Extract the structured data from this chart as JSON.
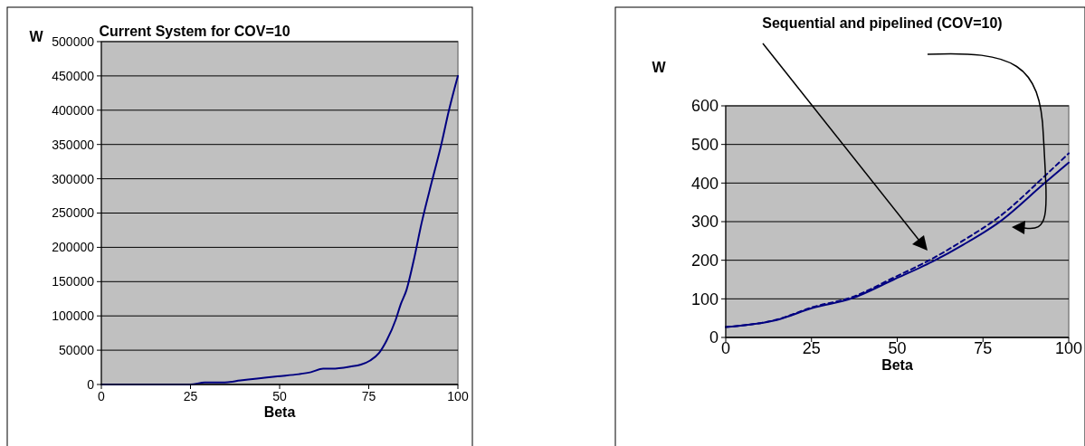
{
  "chart_data": [
    {
      "type": "line",
      "title": "Current System for COV=10",
      "xlabel": "Beta",
      "ylabel": "W",
      "xlim": [
        0,
        100
      ],
      "xticks": [
        0,
        25,
        50,
        75,
        100
      ],
      "ylim": [
        0,
        500000
      ],
      "yticks": [
        0,
        50000,
        100000,
        150000,
        200000,
        250000,
        300000,
        350000,
        400000,
        450000,
        500000
      ],
      "grid": "y",
      "x": [
        0,
        25,
        29,
        34.6,
        39,
        49.4,
        55.4,
        58.8,
        62.2,
        64.7,
        69.8,
        72.8,
        75.4,
        77.9,
        80,
        82.6,
        83.9,
        85.6,
        87.7,
        89.8,
        92.8,
        95.3,
        97.5,
        100
      ],
      "series": [
        {
          "color": "#000080",
          "values": [
            0,
            0,
            3000,
            3000,
            6000,
            12000,
            15000,
            18000,
            23000,
            23000,
            26000,
            29000,
            35000,
            46000,
            64000,
            95000,
            116000,
            138000,
            183000,
            235000,
            298000,
            349000,
            400000,
            450000
          ]
        }
      ]
    },
    {
      "type": "line",
      "title": "Sequential and pipelined  (COV=10)",
      "xlabel": "Beta",
      "ylabel": "W",
      "xlim": [
        0,
        100
      ],
      "xticks": [
        0,
        25,
        50,
        75,
        100
      ],
      "ylim": [
        0,
        600
      ],
      "yticks": [
        0,
        100,
        200,
        300,
        400,
        500,
        600
      ],
      "grid": "y",
      "x": [
        0,
        15.6,
        25.2,
        36.7,
        49,
        60.4,
        69.2,
        79.8,
        93,
        100
      ],
      "series": [
        {
          "color": "#000080",
          "line_style": "solid",
          "values": [
            27,
            47,
            76,
            101,
            150,
            197,
            240,
            299,
            400,
            453
          ]
        },
        {
          "color": "#000080",
          "line_style": "dashed",
          "values": [
            27,
            48,
            78,
            104,
            155,
            205,
            251,
            313,
            418,
            477
          ]
        }
      ]
    }
  ]
}
